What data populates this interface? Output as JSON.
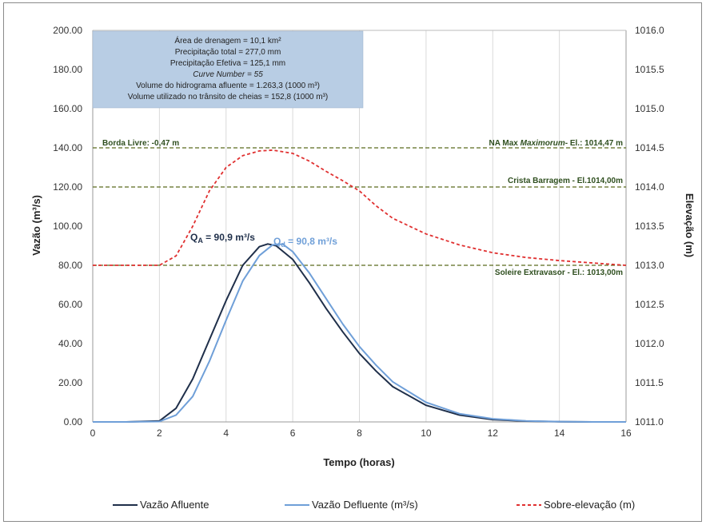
{
  "chart_data": {
    "type": "line",
    "xlabel": "Tempo (horas)",
    "ylabel": "Vazão (m³/s)",
    "y2label": "Elevação (m)",
    "xlim": [
      0,
      16
    ],
    "ylim": [
      0,
      200
    ],
    "y2lim": [
      1011.0,
      1016.0
    ],
    "xticks": [
      "0",
      "2",
      "4",
      "6",
      "8",
      "10",
      "12",
      "14",
      "16"
    ],
    "yticks": [
      "0.00",
      "20.00",
      "40.00",
      "60.00",
      "80.00",
      "100.00",
      "120.00",
      "140.00",
      "160.00",
      "180.00",
      "200.00"
    ],
    "y2ticks": [
      "1011.0",
      "1011.5",
      "1012.0",
      "1012.5",
      "1013.0",
      "1013.5",
      "1014.0",
      "1014.5",
      "1015.0",
      "1015.5",
      "1016.0"
    ],
    "grid": "vertical",
    "legend_position": "bottom",
    "series": [
      {
        "name": "Vazão Afluente",
        "axis": "left",
        "color": "#1f2f4a",
        "x": [
          0,
          1,
          2,
          2.5,
          3,
          3.5,
          4,
          4.5,
          5,
          5.25,
          5.5,
          6,
          6.5,
          7,
          7.5,
          8,
          8.5,
          9,
          10,
          11,
          12,
          13,
          14,
          15,
          16
        ],
        "y": [
          0,
          0,
          0.5,
          7,
          22,
          42,
          62,
          80,
          89.5,
          90.9,
          90,
          83,
          71,
          58,
          46,
          35,
          26,
          18,
          8.5,
          3.5,
          1.2,
          0.4,
          0.1,
          0,
          0
        ]
      },
      {
        "name": "Vazão Defluente (m³/s)",
        "axis": "left",
        "color": "#6f9fd8",
        "x": [
          0,
          1,
          2,
          2.5,
          3,
          3.5,
          4,
          4.5,
          5,
          5.4,
          5.7,
          6,
          6.5,
          7,
          7.5,
          8,
          8.5,
          9,
          10,
          11,
          12,
          13,
          14,
          15,
          16
        ],
        "y": [
          0,
          0,
          0.2,
          3.5,
          13,
          31,
          52,
          72,
          85,
          90.5,
          90.8,
          87,
          76,
          63,
          50,
          38.5,
          29,
          20.5,
          10,
          4.2,
          1.6,
          0.5,
          0.15,
          0,
          0
        ]
      },
      {
        "name": "Sobre-elevação (m)",
        "axis": "right",
        "color": "#e03030",
        "dash": true,
        "x": [
          0,
          1,
          2,
          2.5,
          3,
          3.5,
          4,
          4.5,
          5,
          5.4,
          6,
          6.5,
          7,
          7.5,
          8,
          8.5,
          9,
          10,
          11,
          12,
          13,
          14,
          15,
          16
        ],
        "y": [
          1013.0,
          1013.0,
          1013.0,
          1013.12,
          1013.5,
          1013.95,
          1014.25,
          1014.4,
          1014.46,
          1014.47,
          1014.43,
          1014.33,
          1014.2,
          1014.08,
          1013.95,
          1013.76,
          1013.6,
          1013.4,
          1013.26,
          1013.16,
          1013.1,
          1013.06,
          1013.03,
          1013.0
        ]
      }
    ],
    "reference_lines": [
      {
        "axis": "left",
        "value": 140,
        "left_label": "Borda Livre: -0,47 m",
        "right_label_parts": [
          "NA Max ",
          "Maximorum",
          "- El.: 1014,47 m"
        ]
      },
      {
        "axis": "left",
        "value": 120,
        "right_label": "Crista Barragem - El.1014,00m"
      },
      {
        "axis": "left",
        "value": 80,
        "right_label": "Soleire Extravasor - El.: 1013,00m"
      }
    ],
    "annotations": {
      "qa_label": "Q",
      "qa_sub": "A",
      "qa_value": " = 90,9 m³/s",
      "qd_label": "Q",
      "qd_sub": "d",
      "qd_value": " = 90,8 m³/s"
    },
    "info_box": {
      "lines": [
        "Área de drenagem = 10,1 km²",
        "Precipitação total = 277,0 mm",
        "Precipitação Efetiva = 125,1 mm",
        "Curve Number = 55",
        "Volume do hidrograma afluente = 1.263,3 (1000 m³)",
        "Volume utilizado no trânsito de cheias = 152,8 (1000 m³)"
      ]
    },
    "legend": [
      "Vazão Afluente",
      "Vazão Defluente (m³/s)",
      "Sobre-elevação (m)"
    ]
  }
}
